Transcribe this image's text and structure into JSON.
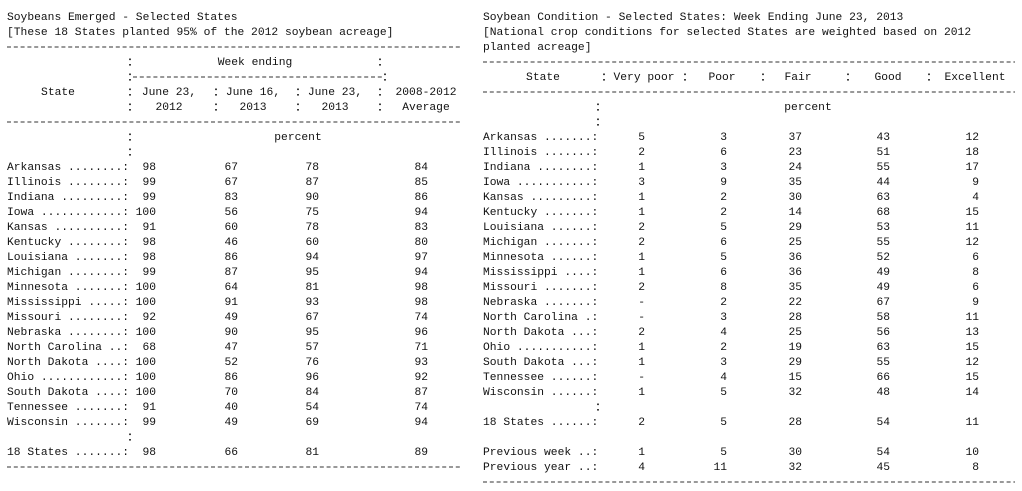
{
  "left": {
    "title": "Soybeans Emerged - Selected States",
    "note": "[These 18 States planted 95% of the 2012 soybean acreage]",
    "header": {
      "group": "Week ending",
      "state": "State",
      "columns": [
        [
          "June 23,",
          "2012"
        ],
        [
          "June 16,",
          "2013"
        ],
        [
          "June 23,",
          "2013"
        ],
        [
          "2008-2012",
          "Average"
        ]
      ]
    },
    "unit": "percent",
    "rows": [
      {
        "label": "Arkansas ........:",
        "values": [
          98,
          67,
          78,
          84
        ]
      },
      {
        "label": "Illinois ........:",
        "values": [
          99,
          67,
          87,
          85
        ]
      },
      {
        "label": "Indiana .........:",
        "values": [
          99,
          83,
          90,
          86
        ]
      },
      {
        "label": "Iowa ............:",
        "values": [
          100,
          56,
          75,
          94
        ]
      },
      {
        "label": "Kansas ..........:",
        "values": [
          91,
          60,
          78,
          83
        ]
      },
      {
        "label": "Kentucky ........:",
        "values": [
          98,
          46,
          60,
          80
        ]
      },
      {
        "label": "Louisiana .......:",
        "values": [
          98,
          86,
          94,
          97
        ]
      },
      {
        "label": "Michigan ........:",
        "values": [
          99,
          87,
          95,
          94
        ]
      },
      {
        "label": "Minnesota .......:",
        "values": [
          100,
          64,
          81,
          98
        ]
      },
      {
        "label": "Mississippi .....:",
        "values": [
          100,
          91,
          93,
          98
        ]
      },
      {
        "label": "Missouri ........:",
        "values": [
          92,
          49,
          67,
          74
        ]
      },
      {
        "label": "Nebraska ........:",
        "values": [
          100,
          90,
          95,
          96
        ]
      },
      {
        "label": "North Carolina ..:",
        "values": [
          68,
          47,
          57,
          71
        ]
      },
      {
        "label": "North Dakota ....:",
        "values": [
          100,
          52,
          76,
          93
        ]
      },
      {
        "label": "Ohio ............:",
        "values": [
          100,
          86,
          96,
          92
        ]
      },
      {
        "label": "South Dakota ....:",
        "values": [
          100,
          70,
          84,
          87
        ]
      },
      {
        "label": "Tennessee .......:",
        "values": [
          91,
          40,
          54,
          74
        ]
      },
      {
        "label": "Wisconsin .......:",
        "values": [
          99,
          49,
          69,
          94
        ]
      }
    ],
    "total": {
      "label": "18 States .......:",
      "values": [
        98,
        66,
        81,
        89
      ]
    }
  },
  "right": {
    "title": "Soybean Condition - Selected States: Week Ending June 23, 2013",
    "note": [
      "[National crop conditions for selected States are weighted based on 2012",
      "planted acreage]"
    ],
    "header": {
      "state": "State",
      "columns": [
        "Very poor",
        "Poor",
        "Fair",
        "Good",
        "Excellent"
      ]
    },
    "unit": "percent",
    "rows": [
      {
        "label": "Arkansas .......:",
        "values": [
          5,
          3,
          37,
          43,
          12
        ]
      },
      {
        "label": "Illinois .......:",
        "values": [
          2,
          6,
          23,
          51,
          18
        ]
      },
      {
        "label": "Indiana ........:",
        "values": [
          1,
          3,
          24,
          55,
          17
        ]
      },
      {
        "label": "Iowa ...........:",
        "values": [
          3,
          9,
          35,
          44,
          9
        ]
      },
      {
        "label": "Kansas .........:",
        "values": [
          1,
          2,
          30,
          63,
          4
        ]
      },
      {
        "label": "Kentucky .......:",
        "values": [
          1,
          2,
          14,
          68,
          15
        ]
      },
      {
        "label": "Louisiana ......:",
        "values": [
          2,
          5,
          29,
          53,
          11
        ]
      },
      {
        "label": "Michigan .......:",
        "values": [
          2,
          6,
          25,
          55,
          12
        ]
      },
      {
        "label": "Minnesota ......:",
        "values": [
          1,
          5,
          36,
          52,
          6
        ]
      },
      {
        "label": "Mississippi ....:",
        "values": [
          1,
          6,
          36,
          49,
          8
        ]
      },
      {
        "label": "Missouri .......:",
        "values": [
          2,
          8,
          35,
          49,
          6
        ]
      },
      {
        "label": "Nebraska .......:",
        "values": [
          "-",
          2,
          22,
          67,
          9
        ]
      },
      {
        "label": "North Carolina .:",
        "values": [
          "-",
          3,
          28,
          58,
          11
        ]
      },
      {
        "label": "North Dakota ...:",
        "values": [
          2,
          4,
          25,
          56,
          13
        ]
      },
      {
        "label": "Ohio ...........:",
        "values": [
          1,
          2,
          19,
          63,
          15
        ]
      },
      {
        "label": "South Dakota ...:",
        "values": [
          1,
          3,
          29,
          55,
          12
        ]
      },
      {
        "label": "Tennessee ......:",
        "values": [
          "-",
          4,
          15,
          66,
          15
        ]
      },
      {
        "label": "Wisconsin ......:",
        "values": [
          1,
          5,
          32,
          48,
          14
        ]
      }
    ],
    "total": {
      "label": "18 States ......:",
      "values": [
        2,
        5,
        28,
        54,
        11
      ]
    },
    "previous": [
      {
        "label": "Previous week ..:",
        "values": [
          1,
          5,
          30,
          54,
          10
        ]
      },
      {
        "label": "Previous year ..:",
        "values": [
          4,
          11,
          32,
          45,
          8
        ]
      }
    ]
  }
}
